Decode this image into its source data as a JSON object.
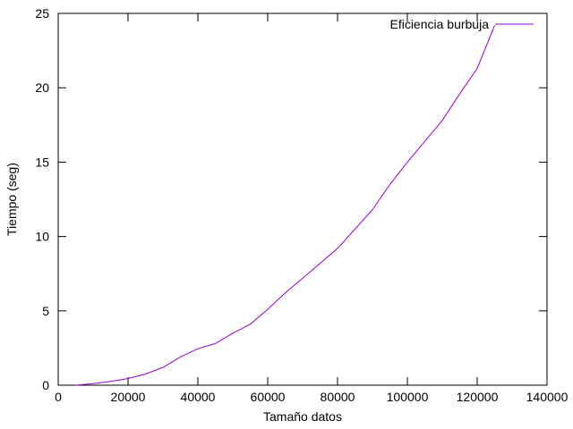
{
  "chart_data": {
    "type": "line",
    "xlabel": "Tamaño datos",
    "ylabel": "Tiempo (seg)",
    "xlim": [
      0,
      140000
    ],
    "ylim": [
      0,
      25
    ],
    "xticks": [
      0,
      20000,
      40000,
      60000,
      80000,
      100000,
      120000,
      140000
    ],
    "yticks": [
      0,
      5,
      10,
      15,
      20,
      25
    ],
    "xtick_labels": [
      "0",
      "20000",
      "40000",
      "60000",
      "80000",
      "100000",
      "120000",
      "140000"
    ],
    "ytick_labels": [
      "0",
      "5",
      "10",
      "15",
      "20",
      "25"
    ],
    "grid": false,
    "legend_position": "top-right",
    "series": [
      {
        "name": "Eficiencia burbuja",
        "color": "#9400d3",
        "x": [
          5000,
          10000,
          15000,
          20000,
          25000,
          30000,
          35000,
          40000,
          45000,
          50000,
          55000,
          60000,
          65000,
          70000,
          75000,
          80000,
          85000,
          90000,
          95000,
          100000,
          105000,
          110000,
          115000,
          120000,
          125000
        ],
        "y": [
          0.0,
          0.1,
          0.25,
          0.45,
          0.75,
          1.2,
          1.9,
          2.45,
          2.8,
          3.5,
          4.1,
          5.1,
          6.2,
          7.2,
          8.2,
          9.2,
          10.5,
          11.8,
          13.5,
          15.0,
          16.4,
          17.8,
          19.6,
          21.3,
          24.2
        ]
      }
    ]
  }
}
